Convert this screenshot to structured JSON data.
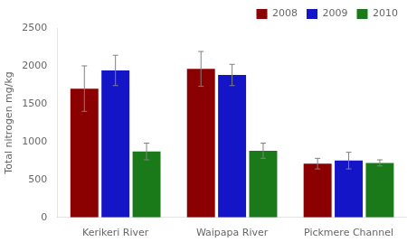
{
  "chart_data": {
    "type": "bar",
    "categories": [
      "Kerikeri River",
      "Waipapa River",
      "Pickmere Channel"
    ],
    "series": [
      {
        "name": "2008",
        "color": "#8B0000",
        "values": [
          1700,
          1960,
          710
        ],
        "errors": [
          300,
          230,
          70
        ]
      },
      {
        "name": "2009",
        "color": "#1515C8",
        "values": [
          1940,
          1880,
          750
        ],
        "errors": [
          200,
          140,
          110
        ]
      },
      {
        "name": "2010",
        "color": "#1A7A1A",
        "values": [
          870,
          880,
          720
        ],
        "errors": [
          110,
          100,
          40
        ]
      }
    ],
    "ylabel": "Total nitrogen mg/kg",
    "ylim": [
      0,
      2500
    ],
    "yticks": [
      0,
      500,
      1000,
      1500,
      2000,
      2500
    ],
    "grid": false,
    "legend": "upper right"
  }
}
